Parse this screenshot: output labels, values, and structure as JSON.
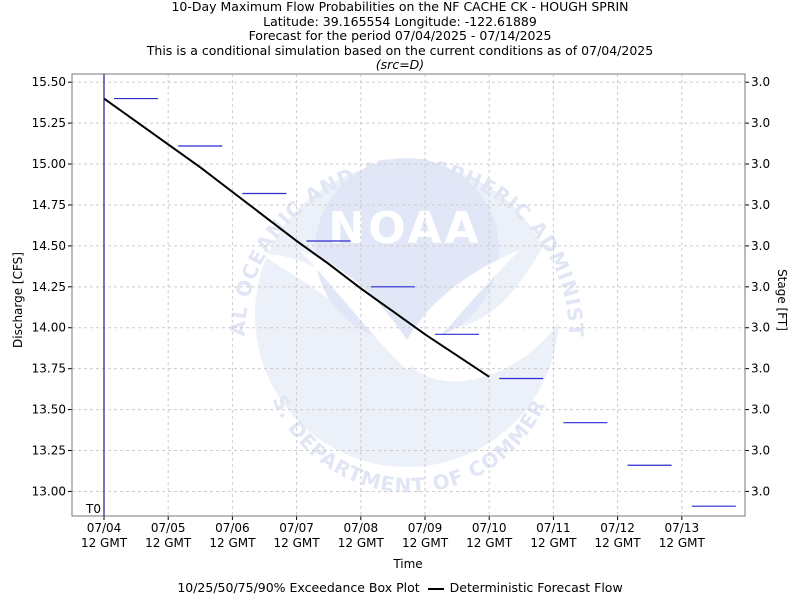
{
  "header": {
    "title": "10-Day Maximum Flow Probabilities on the NF CACHE CK - HOUGH SPRIN",
    "location": "Latitude: 39.165554 Longitude: -122.61889",
    "period": "Forecast for the period 07/04/2025 - 07/14/2025",
    "note": "This is a conditional simulation based on the current conditions as of 07/04/2025",
    "source": "(src=D)"
  },
  "watermark": {
    "logo_text": "NOAA",
    "arc_top": "NATIONAL OCEANIC AND ATMOSPHERIC ADMINISTRATION",
    "arc_bottom": "U.S. DEPARTMENT OF COMMERCE"
  },
  "legend": {
    "box_label": "10/25/50/75/90% Exceedance Box Plot",
    "line_label": "Deterministic Forecast Flow"
  },
  "chart_data": {
    "type": "line",
    "xlabel": "Time",
    "ylabel": "Discharge [CFS]",
    "y2label": "Stage [FT]",
    "ylim": [
      12.85,
      15.55
    ],
    "yticks": [
      "15.50",
      "15.25",
      "15.00",
      "14.75",
      "14.50",
      "14.25",
      "14.00",
      "13.75",
      "13.50",
      "13.25",
      "13.00"
    ],
    "y2ticks": [
      "3.0",
      "3.0",
      "3.0",
      "3.0",
      "3.0",
      "3.0",
      "3.0",
      "3.0",
      "3.0",
      "3.0",
      "3.0"
    ],
    "xticks": [
      {
        "date": "07/04",
        "time": "12 GMT"
      },
      {
        "date": "07/05",
        "time": "12 GMT"
      },
      {
        "date": "07/06",
        "time": "12 GMT"
      },
      {
        "date": "07/07",
        "time": "12 GMT"
      },
      {
        "date": "07/08",
        "time": "12 GMT"
      },
      {
        "date": "07/09",
        "time": "12 GMT"
      },
      {
        "date": "07/10",
        "time": "12 GMT"
      },
      {
        "date": "07/11",
        "time": "12 GMT"
      },
      {
        "date": "07/12",
        "time": "12 GMT"
      },
      {
        "date": "07/13",
        "time": "12 GMT"
      }
    ],
    "t0_label": "T0",
    "grid": true,
    "exceedance": [
      15.4,
      15.11,
      14.82,
      14.53,
      14.25,
      13.96,
      13.69,
      13.42,
      13.16,
      12.91
    ],
    "deterministic": {
      "name": "Deterministic Forecast Flow",
      "x_days": [
        0.0,
        0.5,
        1.0,
        1.5,
        2.0,
        2.5,
        3.0,
        3.5,
        4.0,
        4.5,
        5.0,
        5.5,
        6.0
      ],
      "y": [
        15.4,
        15.26,
        15.12,
        14.98,
        14.83,
        14.68,
        14.53,
        14.39,
        14.24,
        14.1,
        13.96,
        13.83,
        13.7
      ]
    },
    "colors": {
      "box": "#2b2bcf",
      "line": "#000000",
      "grid": "#cccccc",
      "t0": "#1a1a8c"
    }
  }
}
